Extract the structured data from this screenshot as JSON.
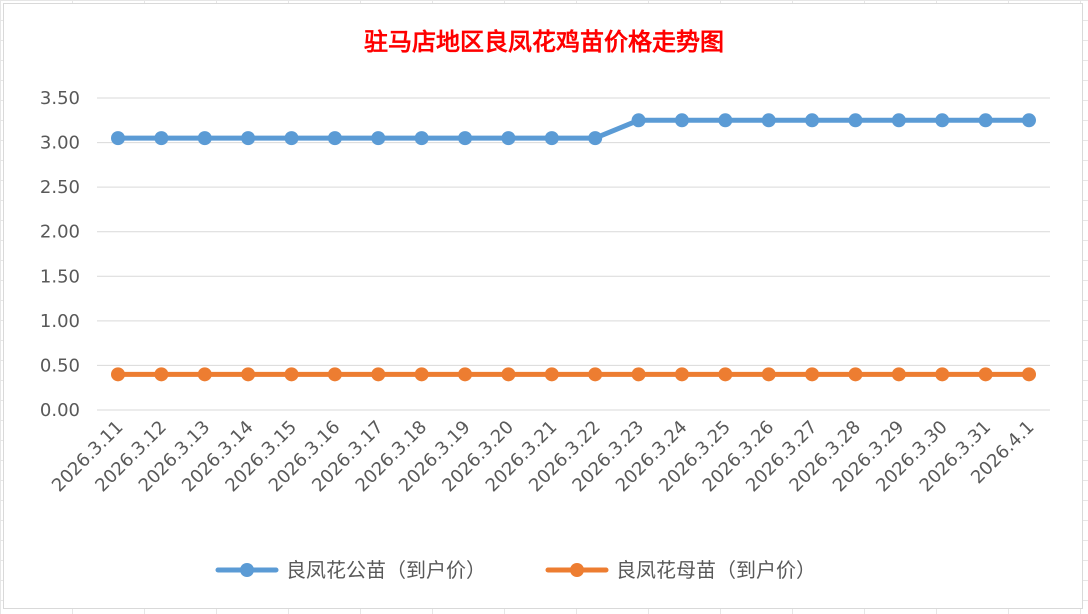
{
  "chart_data": {
    "type": "line",
    "title": "驻马店地区良凤花鸡苗价格走势图",
    "title_color": "#ff0000",
    "xlabel": "",
    "ylabel": "",
    "categories": [
      "2026.3.11",
      "2026.3.12",
      "2026.3.13",
      "2026.3.14",
      "2026.3.15",
      "2026.3.16",
      "2026.3.17",
      "2026.3.18",
      "2026.3.19",
      "2026.3.20",
      "2026.3.21",
      "2026.3.22",
      "2026.3.23",
      "2026.3.24",
      "2026.3.25",
      "2026.3.26",
      "2026.3.27",
      "2026.3.28",
      "2026.3.29",
      "2026.3.30",
      "2026.3.31",
      "2026.4.1"
    ],
    "ylim": [
      0,
      3.5
    ],
    "yticks": [
      "0.00",
      "0.50",
      "1.00",
      "1.50",
      "2.00",
      "2.50",
      "3.00",
      "3.50"
    ],
    "grid": true,
    "legend_position": "bottom",
    "series": [
      {
        "name": "良凤花公苗（到户价）",
        "color": "#5b9bd5",
        "values": [
          3.05,
          3.05,
          3.05,
          3.05,
          3.05,
          3.05,
          3.05,
          3.05,
          3.05,
          3.05,
          3.05,
          3.05,
          3.25,
          3.25,
          3.25,
          3.25,
          3.25,
          3.25,
          3.25,
          3.25,
          3.25,
          3.25
        ]
      },
      {
        "name": "良凤花母苗（到户价）",
        "color": "#ed7d31",
        "values": [
          0.4,
          0.4,
          0.4,
          0.4,
          0.4,
          0.4,
          0.4,
          0.4,
          0.4,
          0.4,
          0.4,
          0.4,
          0.4,
          0.4,
          0.4,
          0.4,
          0.4,
          0.4,
          0.4,
          0.4,
          0.4,
          0.4
        ]
      }
    ]
  }
}
